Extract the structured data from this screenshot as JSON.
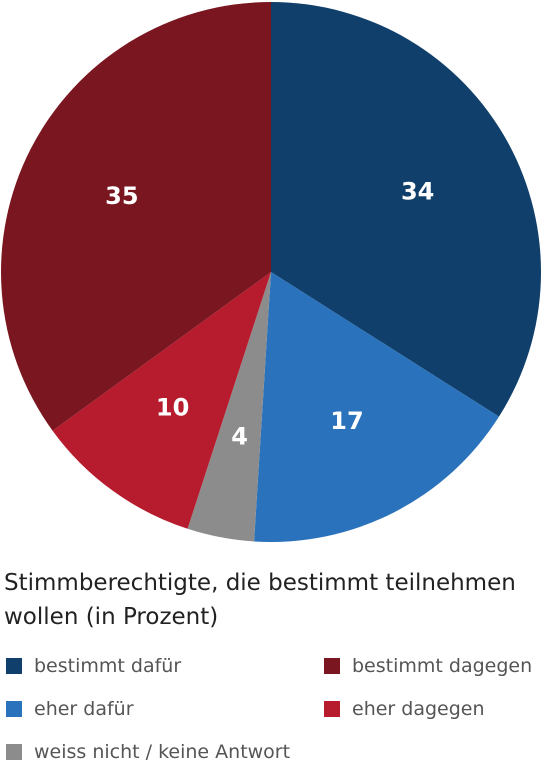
{
  "chart_data": {
    "type": "pie",
    "title": "Stimmberechtigte, die bestimmt teilnehmen wollen (in Prozent)",
    "slices": [
      {
        "label": "bestimmt dafür",
        "value": 34,
        "color": "#103f6b"
      },
      {
        "label": "eher dafür",
        "value": 17,
        "color": "#2a72bb"
      },
      {
        "label": "weiss nicht / keine Antwort",
        "value": 4,
        "color": "#8c8c8c"
      },
      {
        "label": "eher dagegen",
        "value": 10,
        "color": "#b71c2e"
      },
      {
        "label": "bestimmt dagegen",
        "value": 35,
        "color": "#7a1620"
      }
    ],
    "start_angle_deg": 0,
    "direction": "clockwise",
    "legend": {
      "placement": "bottom",
      "order": [
        "bestimmt dafür",
        "bestimmt dagegen",
        "eher dafür",
        "eher dagegen",
        "weiss nicht / keine Antwort"
      ]
    }
  },
  "caption": "Stimmberechtigte, die bestimmt teilnehmen wollen (in Prozent)",
  "legend": [
    {
      "label": "bestimmt dafür",
      "color": "#103f6b"
    },
    {
      "label": "bestimmt dagegen",
      "color": "#7a1620"
    },
    {
      "label": "eher dafür",
      "color": "#2a72bb"
    },
    {
      "label": "eher dagegen",
      "color": "#b71c2e"
    },
    {
      "label": "weiss nicht / keine Antwort",
      "color": "#8c8c8c"
    }
  ]
}
